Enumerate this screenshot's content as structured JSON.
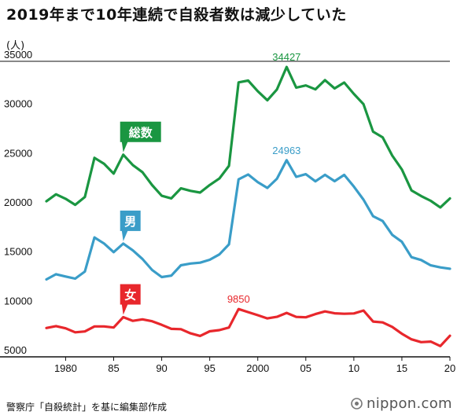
{
  "title": "2019年まで10年連続で自殺者数は減少していた",
  "source": "警察庁「自殺統計」を基に編集部作成",
  "brand": "nippon.com",
  "colors": {
    "total": "#1a9641",
    "male": "#3a9dc8",
    "female": "#e8272c",
    "axis": "#111111"
  },
  "chart_data": {
    "type": "line",
    "ylabel": "(人)",
    "ylim": [
      5000,
      35000
    ],
    "yticks": [
      5000,
      10000,
      15000,
      20000,
      25000,
      30000,
      35000
    ],
    "xlim": [
      1978,
      2020
    ],
    "xticks": [
      1980,
      1985,
      1990,
      1995,
      2000,
      2005,
      2010,
      2015,
      2020
    ],
    "xticklabels": [
      "1980",
      "85",
      "90",
      "95",
      "2000",
      "05",
      "10",
      "15",
      "20"
    ],
    "x": [
      1978,
      1979,
      1980,
      1981,
      1982,
      1983,
      1984,
      1985,
      1986,
      1987,
      1988,
      1989,
      1990,
      1991,
      1992,
      1993,
      1994,
      1995,
      1996,
      1997,
      1998,
      1999,
      2000,
      2001,
      2002,
      2003,
      2004,
      2005,
      2006,
      2007,
      2008,
      2009,
      2010,
      2011,
      2012,
      2013,
      2014,
      2015,
      2016,
      2017,
      2018,
      2019,
      2020
    ],
    "series": [
      {
        "name": "総数",
        "key": "total",
        "values": [
          20788,
          21503,
          21048,
          20434,
          21228,
          25202,
          24596,
          23599,
          25524,
          24460,
          23742,
          22436,
          21346,
          21084,
          22104,
          21851,
          21679,
          22445,
          23104,
          24391,
          32863,
          33048,
          31957,
          31042,
          32143,
          34427,
          32325,
          32552,
          32155,
          33093,
          32249,
          32845,
          31690,
          30651,
          27858,
          27283,
          25427,
          24025,
          21897,
          21321,
          20840,
          20169,
          21081
        ]
      },
      {
        "name": "男",
        "key": "male",
        "values": [
          12859,
          13386,
          13155,
          12942,
          13654,
          17116,
          16508,
          15624,
          16497,
          15802,
          14934,
          13818,
          13102,
          13242,
          14296,
          14468,
          14560,
          14853,
          15393,
          16416,
          23013,
          23512,
          22727,
          22144,
          23080,
          24963,
          23272,
          23540,
          22813,
          23478,
          22831,
          23472,
          22283,
          20955,
          19273,
          18787,
          17386,
          16681,
          15121,
          14826,
          14290,
          14078,
          13943
        ]
      },
      {
        "name": "女",
        "key": "female",
        "values": [
          7929,
          8117,
          7893,
          7492,
          7574,
          8086,
          8088,
          7975,
          9027,
          8658,
          8808,
          8618,
          8244,
          7842,
          7808,
          7383,
          7119,
          7592,
          7711,
          7975,
          9850,
          9536,
          9230,
          8898,
          9063,
          9464,
          9053,
          9012,
          9342,
          9615,
          9418,
          9373,
          9407,
          9696,
          8585,
          8496,
          8041,
          7344,
          6776,
          6495,
          6550,
          6091,
          7138
        ]
      }
    ],
    "annotations": [
      {
        "series": "total",
        "x": 2003,
        "text": "34427"
      },
      {
        "series": "male",
        "x": 2003,
        "text": "24963"
      },
      {
        "series": "female",
        "x": 1998,
        "text": "9850"
      }
    ],
    "tags": [
      {
        "series": "total",
        "x": 1986,
        "text": "総数"
      },
      {
        "series": "male",
        "x": 1986,
        "text": "男"
      },
      {
        "series": "female",
        "x": 1986,
        "text": "女"
      }
    ]
  }
}
